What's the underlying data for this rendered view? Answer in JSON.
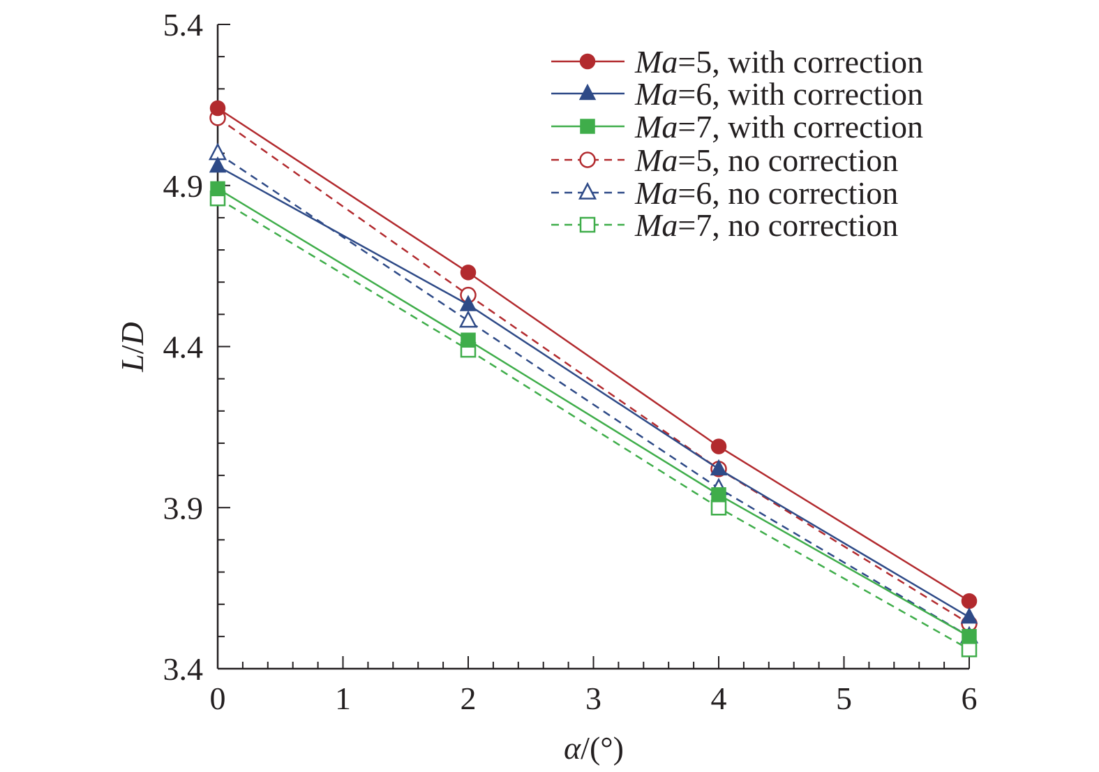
{
  "chart_data": {
    "type": "line",
    "title": "",
    "xlabel": {
      "symbol": "α",
      "unit": "/(°)"
    },
    "ylabel": {
      "L": "L",
      "slash": "/",
      "D": "D"
    },
    "xlim": [
      0,
      6
    ],
    "ylim": [
      3.4,
      5.4
    ],
    "xticks": [
      0,
      1,
      2,
      3,
      4,
      5,
      6
    ],
    "xtick_labels": [
      "0",
      "1",
      "2",
      "3",
      "4",
      "5",
      "6"
    ],
    "yticks": [
      3.4,
      3.9,
      4.4,
      4.9,
      5.4
    ],
    "ytick_labels": [
      "3.4",
      "3.9",
      "4.4",
      "4.9",
      "5.4"
    ],
    "grid": false,
    "legend_position": "top-right",
    "series": [
      {
        "name": "Ma=5, with correction",
        "ma_label": "Ma",
        "rest_label": "=5, with correction",
        "color": "#b22a2e",
        "marker": "circle",
        "filled": true,
        "dashed": false,
        "x": [
          0,
          2,
          4,
          6
        ],
        "y": [
          5.14,
          4.63,
          4.09,
          3.61
        ]
      },
      {
        "name": "Ma=6, with correction",
        "ma_label": "Ma",
        "rest_label": "=6, with correction",
        "color": "#2e4a87",
        "marker": "triangle",
        "filled": true,
        "dashed": false,
        "x": [
          0,
          2,
          4,
          6
        ],
        "y": [
          4.96,
          4.53,
          4.02,
          3.56
        ]
      },
      {
        "name": "Ma=7, with correction",
        "ma_label": "Ma",
        "rest_label": "=7, with correction",
        "color": "#3fad4a",
        "marker": "square",
        "filled": true,
        "dashed": false,
        "x": [
          0,
          2,
          4,
          6
        ],
        "y": [
          4.89,
          4.42,
          3.94,
          3.5
        ]
      },
      {
        "name": "Ma=5, no correction",
        "ma_label": "Ma",
        "rest_label": "=5, no correction",
        "color": "#b22a2e",
        "marker": "circle",
        "filled": false,
        "dashed": true,
        "x": [
          0,
          2,
          4,
          6
        ],
        "y": [
          5.11,
          4.56,
          4.02,
          3.54
        ]
      },
      {
        "name": "Ma=6, no correction",
        "ma_label": "Ma",
        "rest_label": "=6, no correction",
        "color": "#2e4a87",
        "marker": "triangle",
        "filled": false,
        "dashed": true,
        "x": [
          0,
          2,
          4,
          6
        ],
        "y": [
          5.0,
          4.48,
          3.96,
          3.5
        ]
      },
      {
        "name": "Ma=7, no correction",
        "ma_label": "Ma",
        "rest_label": "=7, no correction",
        "color": "#3fad4a",
        "marker": "square",
        "filled": false,
        "dashed": true,
        "x": [
          0,
          2,
          4,
          6
        ],
        "y": [
          4.86,
          4.39,
          3.9,
          3.46
        ]
      }
    ]
  }
}
